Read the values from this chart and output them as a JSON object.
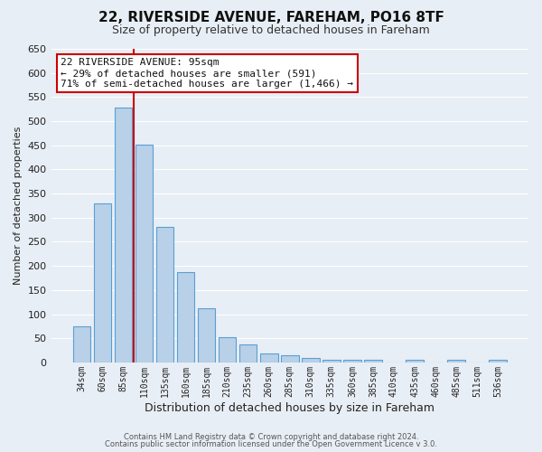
{
  "title": "22, RIVERSIDE AVENUE, FAREHAM, PO16 8TF",
  "subtitle": "Size of property relative to detached houses in Fareham",
  "xlabel": "Distribution of detached houses by size in Fareham",
  "ylabel": "Number of detached properties",
  "bar_labels": [
    "34sqm",
    "60sqm",
    "85sqm",
    "110sqm",
    "135sqm",
    "160sqm",
    "185sqm",
    "210sqm",
    "235sqm",
    "260sqm",
    "285sqm",
    "310sqm",
    "335sqm",
    "360sqm",
    "385sqm",
    "410sqm",
    "435sqm",
    "460sqm",
    "485sqm",
    "511sqm",
    "536sqm"
  ],
  "bar_values": [
    75,
    330,
    528,
    451,
    280,
    188,
    113,
    52,
    37,
    19,
    14,
    9,
    5,
    5,
    5,
    0,
    5,
    0,
    5,
    0,
    5
  ],
  "bar_color": "#b8d0e8",
  "bar_edge_color": "#5a9fd4",
  "marker_bar_index": 3,
  "marker_color": "#cc0000",
  "ylim_max": 650,
  "ytick_step": 50,
  "annotation_title": "22 RIVERSIDE AVENUE: 95sqm",
  "annotation_line1": "← 29% of detached houses are smaller (591)",
  "annotation_line2": "71% of semi-detached houses are larger (1,466) →",
  "annotation_box_color": "#ffffff",
  "annotation_box_edge": "#cc0000",
  "footer1": "Contains HM Land Registry data © Crown copyright and database right 2024.",
  "footer2": "Contains public sector information licensed under the Open Government Licence v 3.0.",
  "bg_color": "#e8eef5",
  "plot_bg_color": "#e8eef5",
  "grid_color": "#ffffff"
}
